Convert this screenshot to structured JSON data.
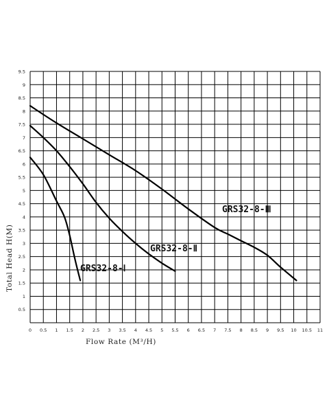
{
  "chart_data": {
    "type": "line",
    "xlabel": "Flow Rate (M³/H)",
    "ylabel": "Total Head H(M)",
    "xlim": [
      0,
      11
    ],
    "ylim": [
      0,
      9.5
    ],
    "x_ticks": [
      "0",
      "0.5",
      "1",
      "1.5",
      "2",
      "2.5",
      "3",
      "3.5",
      "4",
      "4.5",
      "5",
      "5.5",
      "6",
      "6.5",
      "7",
      "7.5",
      "8",
      "8.5",
      "9",
      "9.5",
      "10",
      "10.5",
      "11"
    ],
    "y_ticks": [
      "0.5",
      "1",
      "1.5",
      "2",
      "2.5",
      "3",
      "3.5",
      "4",
      "4.5",
      "5",
      "5.5",
      "6",
      "6.5",
      "7",
      "7.5",
      "8",
      "8.5",
      "9",
      "9.5"
    ],
    "grid": true,
    "series": [
      {
        "name": "GRS32-8-Ⅰ",
        "x": [
          0,
          0.5,
          1,
          1.3,
          1.5,
          1.7,
          1.9
        ],
        "y": [
          6.25,
          5.6,
          4.6,
          4.0,
          3.3,
          2.4,
          1.6
        ]
      },
      {
        "name": "GRS32-8-Ⅱ",
        "x": [
          0,
          0.5,
          1,
          1.5,
          2,
          2.5,
          3,
          3.5,
          4,
          4.5,
          5,
          5.5
        ],
        "y": [
          7.45,
          7.0,
          6.5,
          5.9,
          5.25,
          4.55,
          3.95,
          3.45,
          3.0,
          2.6,
          2.25,
          1.95
        ]
      },
      {
        "name": "GRS32-8-Ⅲ",
        "x": [
          0,
          1,
          2,
          3,
          4,
          5,
          6,
          7,
          7.5,
          8,
          8.5,
          9,
          9.5,
          10.1
        ],
        "y": [
          8.2,
          7.55,
          6.95,
          6.35,
          5.75,
          5.05,
          4.3,
          3.6,
          3.35,
          3.1,
          2.85,
          2.55,
          2.1,
          1.6
        ]
      }
    ]
  }
}
